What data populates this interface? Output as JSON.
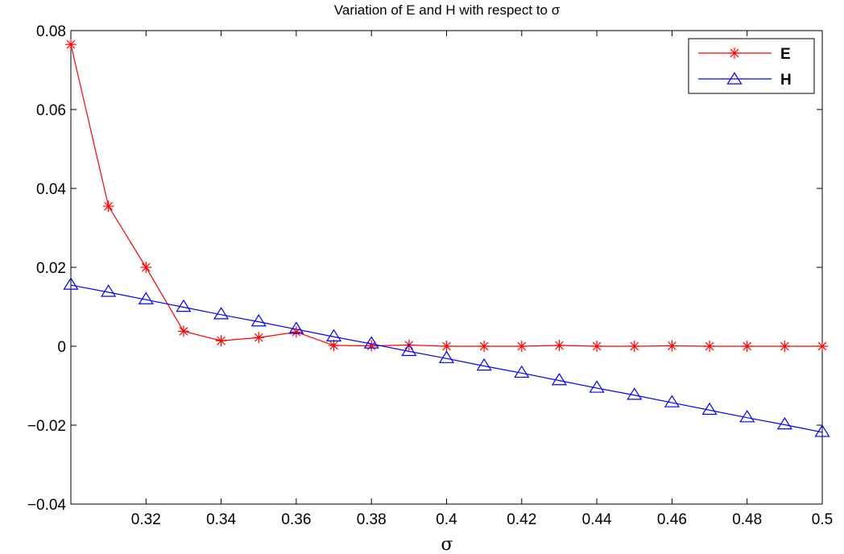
{
  "chart_data": {
    "type": "line",
    "title": "Variation of E and H with respect to σ",
    "xlabel": "σ",
    "ylabel": "",
    "xlim": [
      0.3,
      0.5
    ],
    "ylim": [
      -0.04,
      0.08
    ],
    "xticks": [
      0.32,
      0.34,
      0.36,
      0.38,
      0.4,
      0.42,
      0.44,
      0.46,
      0.48,
      0.5
    ],
    "xtick_labels": [
      "0.32",
      "0.34",
      "0.36",
      "0.38",
      "0.4",
      "0.42",
      "0.44",
      "0.46",
      "0.48",
      "0.5"
    ],
    "yticks": [
      -0.04,
      -0.02,
      0,
      0.02,
      0.04,
      0.06,
      0.08
    ],
    "ytick_labels": [
      "−0.04",
      "−0.02",
      "0",
      "0.02",
      "0.04",
      "0.06",
      "0.08"
    ],
    "grid": false,
    "legend_position": "top-right",
    "x": [
      0.3,
      0.31,
      0.32,
      0.33,
      0.34,
      0.35,
      0.36,
      0.37,
      0.38,
      0.39,
      0.4,
      0.41,
      0.42,
      0.43,
      0.44,
      0.45,
      0.46,
      0.47,
      0.48,
      0.49,
      0.5
    ],
    "series": [
      {
        "name": "E",
        "color": "#ff0000",
        "marker": "asterisk",
        "values": [
          0.0765,
          0.0355,
          0.02,
          0.0038,
          0.0014,
          0.0022,
          0.0036,
          0.0002,
          0.0001,
          0.0003,
          0.0,
          0.0,
          0.0,
          0.0002,
          0.0,
          0.0,
          0.0001,
          0.0,
          0.0,
          0.0,
          0.0
        ]
      },
      {
        "name": "H",
        "color": "#0000ff",
        "marker": "triangle",
        "values": [
          0.0155,
          0.0137,
          0.0118,
          0.0099,
          0.008,
          0.0062,
          0.0043,
          0.0024,
          0.0006,
          -0.0013,
          -0.0031,
          -0.005,
          -0.0068,
          -0.0087,
          -0.0106,
          -0.0124,
          -0.0143,
          -0.0162,
          -0.0181,
          -0.0199,
          -0.0218
        ]
      }
    ]
  }
}
